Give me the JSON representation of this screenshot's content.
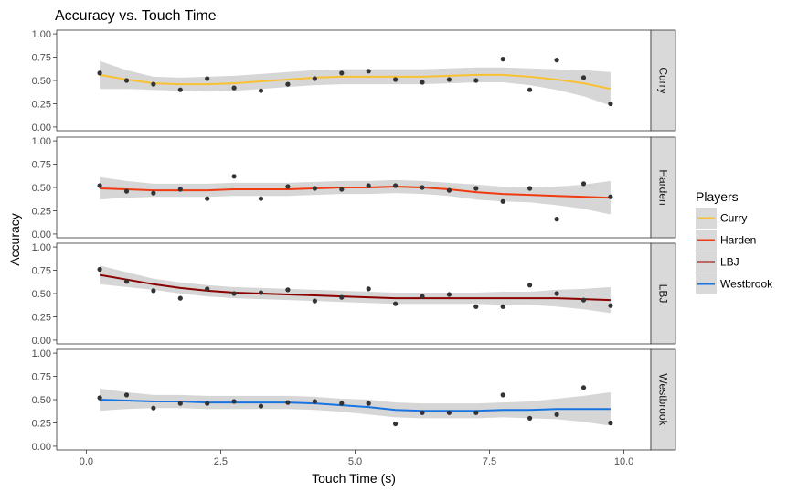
{
  "chart_data": {
    "type": "scatter",
    "title": "Accuracy vs. Touch Time",
    "xlabel": "Touch Time (s)",
    "ylabel": "Accuracy",
    "xlim": [
      -0.55,
      10.5
    ],
    "ylim": [
      -0.04,
      1.04
    ],
    "x_ticks": [
      "0.0",
      "2.5",
      "5.0",
      "7.5",
      "10.0"
    ],
    "x_tick_values": [
      0,
      2.5,
      5,
      7.5,
      10
    ],
    "y_ticks": [
      "0.00",
      "0.25",
      "0.50",
      "0.75",
      "1.00"
    ],
    "y_tick_values": [
      0,
      0.25,
      0.5,
      0.75,
      1
    ],
    "grid": false,
    "legend_title": "Players",
    "legend_position": "right",
    "x": [
      0.25,
      0.75,
      1.25,
      1.75,
      2.25,
      2.75,
      3.25,
      3.75,
      4.25,
      4.75,
      5.25,
      5.75,
      6.25,
      6.75,
      7.25,
      7.75,
      8.25,
      8.75,
      9.25,
      9.75
    ],
    "series": [
      {
        "name": "Curry",
        "color": "#f8c132",
        "points": [
          0.58,
          0.5,
          0.46,
          0.4,
          0.52,
          0.42,
          0.39,
          0.46,
          0.52,
          0.58,
          0.6,
          0.51,
          0.48,
          0.51,
          0.5,
          0.73,
          0.4,
          0.72,
          0.53,
          0.25
        ],
        "smooth": [
          0.56,
          0.51,
          0.47,
          0.46,
          0.46,
          0.47,
          0.49,
          0.51,
          0.53,
          0.54,
          0.54,
          0.54,
          0.54,
          0.55,
          0.56,
          0.56,
          0.54,
          0.51,
          0.47,
          0.41
        ],
        "band": [
          0.15,
          0.1,
          0.07,
          0.07,
          0.08,
          0.08,
          0.08,
          0.08,
          0.08,
          0.08,
          0.08,
          0.08,
          0.08,
          0.08,
          0.08,
          0.08,
          0.09,
          0.11,
          0.14,
          0.18
        ]
      },
      {
        "name": "Harden",
        "color": "#f03a12",
        "points": [
          0.52,
          0.46,
          0.44,
          0.48,
          0.38,
          0.62,
          0.38,
          0.51,
          0.49,
          0.48,
          0.52,
          0.52,
          0.5,
          0.47,
          0.49,
          0.35,
          0.49,
          0.16,
          0.54,
          0.4
        ],
        "smooth": [
          0.49,
          0.48,
          0.47,
          0.47,
          0.47,
          0.48,
          0.48,
          0.48,
          0.49,
          0.5,
          0.5,
          0.51,
          0.5,
          0.48,
          0.45,
          0.43,
          0.42,
          0.41,
          0.4,
          0.39
        ],
        "band": [
          0.12,
          0.09,
          0.07,
          0.07,
          0.07,
          0.07,
          0.07,
          0.07,
          0.07,
          0.07,
          0.07,
          0.07,
          0.07,
          0.07,
          0.08,
          0.08,
          0.08,
          0.1,
          0.13,
          0.18
        ]
      },
      {
        "name": "LBJ",
        "color": "#8b0000",
        "points": [
          0.76,
          0.63,
          0.53,
          0.45,
          0.55,
          0.5,
          0.51,
          0.54,
          0.42,
          0.46,
          0.55,
          0.39,
          0.47,
          0.49,
          0.36,
          0.36,
          0.59,
          0.5,
          0.43,
          0.37
        ],
        "smooth": [
          0.7,
          0.65,
          0.6,
          0.56,
          0.53,
          0.51,
          0.5,
          0.49,
          0.48,
          0.47,
          0.46,
          0.45,
          0.45,
          0.45,
          0.45,
          0.45,
          0.45,
          0.45,
          0.44,
          0.43
        ],
        "band": [
          0.1,
          0.08,
          0.06,
          0.06,
          0.06,
          0.06,
          0.06,
          0.06,
          0.06,
          0.06,
          0.06,
          0.06,
          0.06,
          0.06,
          0.06,
          0.07,
          0.07,
          0.09,
          0.11,
          0.14
        ]
      },
      {
        "name": "Westbrook",
        "color": "#1874e0",
        "points": [
          0.52,
          0.55,
          0.41,
          0.46,
          0.46,
          0.48,
          0.43,
          0.47,
          0.48,
          0.46,
          0.46,
          0.24,
          0.36,
          0.36,
          0.36,
          0.55,
          0.3,
          0.34,
          0.63,
          0.25
        ],
        "smooth": [
          0.5,
          0.49,
          0.48,
          0.48,
          0.47,
          0.47,
          0.47,
          0.47,
          0.46,
          0.44,
          0.42,
          0.39,
          0.38,
          0.38,
          0.38,
          0.39,
          0.39,
          0.4,
          0.4,
          0.4
        ],
        "band": [
          0.12,
          0.09,
          0.07,
          0.07,
          0.07,
          0.07,
          0.07,
          0.07,
          0.07,
          0.07,
          0.08,
          0.08,
          0.08,
          0.08,
          0.08,
          0.08,
          0.09,
          0.11,
          0.14,
          0.18
        ]
      }
    ]
  }
}
